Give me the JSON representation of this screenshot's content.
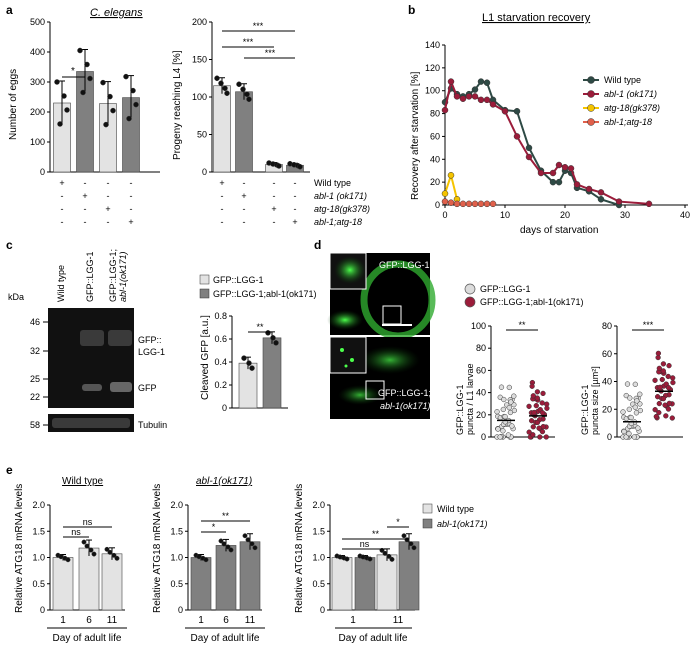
{
  "panels": {
    "a": {
      "letter": "a",
      "title": "C. elegans",
      "eggs": {
        "ylabel": "Number of eggs",
        "ticks": [
          "0",
          "100",
          "200",
          "300",
          "400",
          "500"
        ],
        "means": [
          230,
          335,
          228,
          248
        ],
        "sig": "*"
      },
      "progeny": {
        "ylabel": "Progeny reaching L4 [%]",
        "ticks": [
          "0",
          "50",
          "100",
          "150",
          "200"
        ],
        "means": [
          115,
          107,
          10,
          9
        ],
        "sig": [
          "***",
          "***",
          "***"
        ]
      },
      "genotype_rows": [
        {
          "label": "Wild type",
          "eggs": [
            "+",
            "-",
            "-",
            "-"
          ],
          "prog": [
            "+",
            "-",
            "-",
            "-"
          ]
        },
        {
          "label": "abl-1 (ok171)",
          "eggs": [
            "-",
            "+",
            "-",
            "-"
          ],
          "prog": [
            "-",
            "+",
            "-",
            "-"
          ]
        },
        {
          "label": "atg-18(gk378)",
          "eggs": [
            "-",
            "-",
            "+",
            "-"
          ],
          "prog": [
            "-",
            "-",
            "+",
            "-"
          ]
        },
        {
          "label": "abl-1;atg-18",
          "eggs": [
            "-",
            "-",
            "-",
            "+"
          ],
          "prog": [
            "-",
            "-",
            "-",
            "+"
          ]
        }
      ]
    },
    "b": {
      "letter": "b",
      "title": "L1 starvation recovery",
      "ylabel": "Recovery after starvation [%]",
      "xlabel": "days of starvation",
      "yticks": [
        "0",
        "20",
        "40",
        "60",
        "80",
        "100",
        "120",
        "140"
      ],
      "xticks": [
        "0",
        "10",
        "20",
        "30",
        "40"
      ],
      "legend": [
        "Wild type",
        "abl-1 (ok171)",
        "atg-18(gk378)",
        "abl-1;atg-18"
      ]
    },
    "c": {
      "letter": "c",
      "lanes": [
        "Wild type",
        "GFP::LGG-1",
        "GFP::LGG-1;",
        "abl-1(ok171)"
      ],
      "kda": "kDa",
      "markers": [
        "46",
        "32",
        "25",
        "22",
        "58"
      ],
      "band_labels": [
        "GFP::",
        "LGG-1",
        "GFP",
        "Tubulin"
      ],
      "legend": [
        "GFP::LGG-1",
        "GFP::LGG-1;abl-1(ok171)"
      ],
      "ylabel": "Cleaved GFP [a.u.]",
      "yticks": [
        "0",
        "0.2",
        "0.4",
        "0.6",
        "0.8"
      ],
      "means": [
        0.39,
        0.61
      ],
      "sig": "**"
    },
    "d": {
      "letter": "d",
      "img_labels": [
        "GFP::LGG-1",
        "GFP::LGG-1;",
        "abl-1(ok171)"
      ],
      "legend": [
        "GFP::LGG-1",
        "GFP::LGG-1;abl-1(ok171)"
      ],
      "ylabel1": [
        "GFP::LGG-1",
        "puncta / L1 larvae"
      ],
      "ylabel2": [
        "GFP::LGG-1",
        "puncta size [µm²]"
      ],
      "yticks1": [
        "0",
        "20",
        "40",
        "60",
        "80",
        "100"
      ],
      "yticks2": [
        "0",
        "20",
        "40",
        "60",
        "80"
      ],
      "means1": [
        15,
        19
      ],
      "means2": [
        11,
        33
      ],
      "sig1": "**",
      "sig2": "***"
    },
    "e": {
      "letter": "e",
      "titles": [
        "Wild type",
        "abl-1(ok171)"
      ],
      "ylabel": "Relative ATG18 mRNA levels",
      "yticks": [
        "0",
        "0.5",
        "1.0",
        "1.5",
        "2.0"
      ],
      "xlabel": "Day of adult life",
      "xticks": [
        "1",
        "6",
        "11"
      ],
      "xticks3": [
        "1",
        "11"
      ],
      "wt_means": [
        1.0,
        1.18,
        1.07
      ],
      "abl_means": [
        1.0,
        1.23,
        1.3
      ],
      "combo_means": [
        1.0,
        1.0,
        1.05,
        1.3
      ],
      "sig1": [
        "ns",
        "ns"
      ],
      "sig2": [
        "*",
        "**"
      ],
      "sig3": [
        "ns",
        "**",
        "*"
      ],
      "legend": [
        "Wild type",
        "abl-1(ok171)"
      ]
    }
  },
  "chart_data": [
    {
      "type": "bar",
      "title": "C. elegans",
      "ylabel": "Number of eggs",
      "categories": [
        "Wild type",
        "abl-1 (ok171)",
        "atg-18(gk378)",
        "abl-1;atg-18"
      ],
      "values": [
        230,
        335,
        228,
        248
      ],
      "ylim": [
        0,
        500
      ]
    },
    {
      "type": "bar",
      "ylabel": "Progeny reaching L4 [%]",
      "categories": [
        "Wild type",
        "abl-1 (ok171)",
        "atg-18(gk378)",
        "abl-1;atg-18"
      ],
      "values": [
        115,
        107,
        10,
        9
      ],
      "ylim": [
        0,
        200
      ]
    },
    {
      "type": "line",
      "title": "L1 starvation recovery",
      "xlabel": "days of starvation",
      "ylabel": "Recovery after starvation [%]",
      "ylim": [
        0,
        140
      ],
      "xlim": [
        0,
        40
      ],
      "series": [
        {
          "name": "Wild type",
          "color": "#2e4a45",
          "x": [
            0,
            1,
            2,
            3,
            4,
            5,
            6,
            7,
            8,
            10,
            12,
            14,
            16,
            18,
            19,
            20,
            21,
            22,
            24,
            26,
            29
          ],
          "y": [
            90,
            102,
            97,
            95,
            97,
            101,
            108,
            107,
            92,
            83,
            82,
            50,
            30,
            20,
            20,
            30,
            28,
            15,
            12,
            5,
            0
          ]
        },
        {
          "name": "abl-1 (ok171)",
          "color": "#9b1c3a",
          "x": [
            0,
            1,
            2,
            3,
            4,
            5,
            6,
            7,
            8,
            10,
            12,
            14,
            16,
            18,
            19,
            20,
            21,
            22,
            24,
            26,
            29,
            34
          ],
          "y": [
            83,
            108,
            95,
            93,
            95,
            95,
            92,
            92,
            88,
            82,
            60,
            42,
            28,
            28,
            35,
            33,
            32,
            18,
            14,
            11,
            3,
            1
          ]
        },
        {
          "name": "atg-18(gk378)",
          "color": "#f5c400",
          "x": [
            0,
            1,
            2
          ],
          "y": [
            10,
            26,
            5
          ]
        },
        {
          "name": "abl-1;atg-18",
          "color": "#e0604b",
          "x": [
            0,
            1,
            2,
            3,
            4,
            5,
            6,
            7,
            8
          ],
          "y": [
            3,
            2,
            1,
            1,
            1,
            1,
            1,
            1,
            1
          ]
        }
      ]
    },
    {
      "type": "bar",
      "ylabel": "Cleaved GFP [a.u.]",
      "categories": [
        "GFP::LGG-1",
        "GFP::LGG-1;abl-1(ok171)"
      ],
      "values": [
        0.39,
        0.61
      ],
      "ylim": [
        0,
        0.8
      ]
    },
    {
      "type": "scatter",
      "ylabel": "GFP::LGG-1 puncta / L1 larvae",
      "categories": [
        "GFP::LGG-1",
        "GFP::LGG-1;abl-1(ok171)"
      ],
      "values": [
        15,
        19
      ],
      "ylim": [
        0,
        100
      ]
    },
    {
      "type": "scatter",
      "ylabel": "GFP::LGG-1 puncta size [µm²]",
      "categories": [
        "GFP::LGG-1",
        "GFP::LGG-1;abl-1(ok171)"
      ],
      "values": [
        11,
        33
      ],
      "ylim": [
        0,
        80
      ]
    },
    {
      "type": "bar",
      "title": "Wild type",
      "ylabel": "Relative ATG18 mRNA levels",
      "categories": [
        "1",
        "6",
        "11"
      ],
      "values": [
        1.0,
        1.18,
        1.07
      ],
      "ylim": [
        0,
        2.0
      ]
    },
    {
      "type": "bar",
      "title": "abl-1(ok171)",
      "ylabel": "Relative ATG18 mRNA levels",
      "categories": [
        "1",
        "6",
        "11"
      ],
      "values": [
        1.0,
        1.23,
        1.3
      ],
      "ylim": [
        0,
        2.0
      ]
    },
    {
      "type": "bar",
      "ylabel": "Relative ATG18 mRNA levels",
      "categories": [
        "1",
        "11"
      ],
      "series": [
        {
          "name": "Wild type",
          "values": [
            1.0,
            1.05
          ]
        },
        {
          "name": "abl-1(ok171)",
          "values": [
            1.0,
            1.3
          ]
        }
      ],
      "ylim": [
        0,
        2.0
      ]
    }
  ]
}
